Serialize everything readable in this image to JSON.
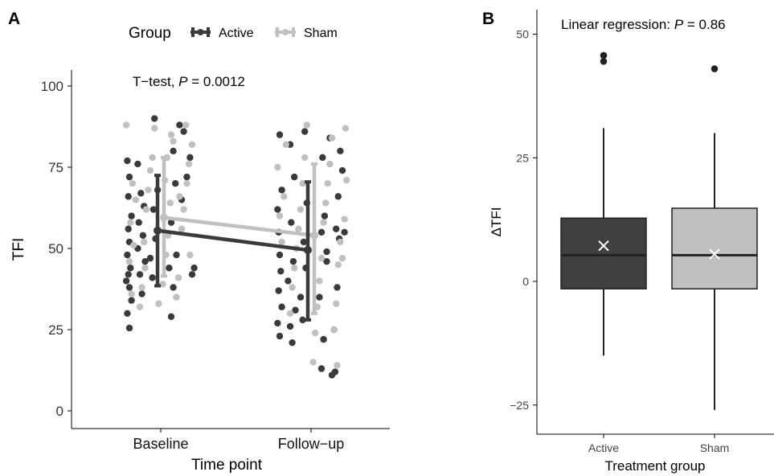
{
  "chart_data": [
    {
      "panel_label": "A",
      "type": "scatter",
      "annotation": {
        "prefix": "T−test, ",
        "p": "P",
        "suffix": " = 0.0012"
      },
      "xlabel": "Time point",
      "ylabel": "TFI",
      "categories": [
        "Baseline",
        "Follow−up"
      ],
      "ylim": [
        -5,
        105
      ],
      "yticks": [
        0,
        25,
        50,
        75,
        100
      ],
      "legend": {
        "title": "Group",
        "position": "top"
      },
      "series": [
        {
          "name": "Active",
          "color": "#3a3a3a",
          "means": [
            55.5,
            49.5
          ],
          "error_low": [
            38.5,
            28
          ],
          "error_high": [
            72.5,
            70.5
          ],
          "points": [
            [
              [
                -0.3,
                25.5
              ],
              [
                -0.32,
                30
              ],
              [
                -0.28,
                34
              ],
              [
                -0.3,
                38
              ],
              [
                -0.33,
                40
              ],
              [
                -0.31,
                42
              ],
              [
                -0.29,
                44
              ],
              [
                -0.32,
                48
              ],
              [
                -0.3,
                52
              ],
              [
                -0.31,
                56
              ],
              [
                -0.28,
                60
              ],
              [
                -0.31,
                66
              ],
              [
                -0.3,
                72
              ],
              [
                -0.32,
                77
              ],
              [
                -0.18,
                36
              ],
              [
                -0.2,
                42
              ],
              [
                -0.15,
                46
              ],
              [
                -0.22,
                50
              ],
              [
                -0.17,
                54
              ],
              [
                -0.21,
                58
              ],
              [
                -0.16,
                63
              ],
              [
                -0.19,
                67
              ],
              [
                -0.22,
                76
              ],
              [
                -0.08,
                41
              ],
              [
                -0.1,
                47
              ],
              [
                -0.05,
                53
              ],
              [
                -0.07,
                62
              ],
              [
                -0.03,
                68
              ],
              [
                -0.06,
                90
              ],
              [
                0.1,
                29
              ],
              [
                0.12,
                38
              ],
              [
                0.08,
                44
              ],
              [
                0.15,
                48
              ],
              [
                0.1,
                58
              ],
              [
                0.14,
                70
              ],
              [
                0.12,
                80
              ],
              [
                0.2,
                65
              ],
              [
                0.25,
                72
              ],
              [
                0.28,
                78
              ],
              [
                0.22,
                86
              ],
              [
                0.3,
                42
              ],
              [
                0.32,
                44
              ],
              [
                0.18,
                88
              ]
            ],
            [
              [
                -0.3,
                23
              ],
              [
                -0.32,
                27
              ],
              [
                -0.28,
                32
              ],
              [
                -0.31,
                37
              ],
              [
                -0.29,
                43
              ],
              [
                -0.3,
                48
              ],
              [
                -0.31,
                55
              ],
              [
                -0.32,
                62
              ],
              [
                -0.28,
                68
              ],
              [
                -0.3,
                85
              ],
              [
                -0.18,
                21
              ],
              [
                -0.2,
                26
              ],
              [
                -0.15,
                31
              ],
              [
                -0.22,
                40
              ],
              [
                -0.17,
                46
              ],
              [
                -0.19,
                58
              ],
              [
                -0.16,
                72
              ],
              [
                -0.2,
                82
              ],
              [
                -0.08,
                28
              ],
              [
                -0.1,
                35
              ],
              [
                -0.05,
                44
              ],
              [
                -0.07,
                52
              ],
              [
                -0.04,
                64
              ],
              [
                -0.06,
                86
              ],
              [
                0.1,
                13
              ],
              [
                0.12,
                22
              ],
              [
                0.08,
                35
              ],
              [
                0.15,
                46
              ],
              [
                0.1,
                55
              ],
              [
                0.13,
                60
              ],
              [
                0.11,
                78
              ],
              [
                0.2,
                11
              ],
              [
                0.22,
                25
              ],
              [
                0.25,
                38
              ],
              [
                0.27,
                53
              ],
              [
                0.24,
                56
              ],
              [
                0.26,
                66
              ],
              [
                0.3,
                74
              ],
              [
                0.28,
                80
              ],
              [
                0.32,
                55
              ],
              [
                0.18,
                84
              ],
              [
                0.23,
                12
              ],
              [
                0.15,
                49
              ]
            ]
          ]
        },
        {
          "name": "Sham",
          "color": "#c0c0c0",
          "means": [
            59.5,
            54
          ],
          "error_low": [
            41.5,
            30
          ],
          "error_high": [
            78,
            76
          ],
          "points": [
            [
              [
                -0.33,
                88
              ],
              [
                -0.28,
                36
              ],
              [
                -0.3,
                46
              ],
              [
                -0.26,
                51
              ],
              [
                -0.29,
                58
              ],
              [
                -0.27,
                70
              ],
              [
                -0.2,
                32
              ],
              [
                -0.18,
                38
              ],
              [
                -0.15,
                44
              ],
              [
                -0.16,
                52
              ],
              [
                -0.14,
                62
              ],
              [
                -0.12,
                68
              ],
              [
                -0.1,
                74
              ],
              [
                -0.08,
                78
              ],
              [
                -0.06,
                87
              ],
              [
                -0.02,
                33
              ],
              [
                0.02,
                39
              ],
              [
                0.05,
                48
              ],
              [
                0.07,
                54
              ],
              [
                0.09,
                64
              ],
              [
                0.04,
                71
              ],
              [
                0.06,
                78
              ],
              [
                0.1,
                85
              ],
              [
                0.15,
                35
              ],
              [
                0.17,
                41
              ],
              [
                0.2,
                56
              ],
              [
                0.22,
                62
              ],
              [
                0.25,
                70
              ],
              [
                0.27,
                76
              ],
              [
                0.3,
                82
              ],
              [
                0.24,
                88
              ],
              [
                0.28,
                48
              ],
              [
                -0.24,
                65
              ],
              [
                0.12,
                83
              ],
              [
                0.18,
                66
              ]
            ],
            [
              [
                -0.3,
                60
              ],
              [
                -0.28,
                52
              ],
              [
                -0.26,
                66
              ],
              [
                -0.32,
                75
              ],
              [
                -0.24,
                82
              ],
              [
                -0.2,
                30
              ],
              [
                -0.18,
                38
              ],
              [
                -0.16,
                44
              ],
              [
                -0.14,
                50
              ],
              [
                -0.12,
                56
              ],
              [
                -0.1,
                62
              ],
              [
                -0.08,
                70
              ],
              [
                -0.06,
                78
              ],
              [
                -0.04,
                88
              ],
              [
                0.02,
                15
              ],
              [
                0.04,
                24
              ],
              [
                0.06,
                32
              ],
              [
                0.08,
                40
              ],
              [
                0.1,
                47
              ],
              [
                0.12,
                58
              ],
              [
                0.14,
                64
              ],
              [
                0.16,
                70
              ],
              [
                0.18,
                76
              ],
              [
                0.2,
                84
              ],
              [
                0.22,
                25
              ],
              [
                0.24,
                33
              ],
              [
                0.26,
                45
              ],
              [
                0.28,
                52
              ],
              [
                0.3,
                47
              ],
              [
                0.32,
                59
              ],
              [
                0.34,
                71
              ],
              [
                0.33,
                87
              ],
              [
                0.25,
                14
              ]
            ]
          ]
        }
      ]
    },
    {
      "panel_label": "B",
      "type": "box",
      "annotation": {
        "prefix": "Linear regression: ",
        "p": "P",
        "suffix": " = 0.86"
      },
      "xlabel": "Treatment group",
      "ylabel": "ΔTFI",
      "categories": [
        "Active",
        "Sham"
      ],
      "ylim": [
        -30,
        52
      ],
      "yticks": [
        -25,
        0,
        25,
        50
      ],
      "boxes": [
        {
          "name": "Active",
          "color": "#404040",
          "whisker_low": -15,
          "q1": -1.5,
          "median": 5.3,
          "q3": 12.8,
          "whisker_high": 31,
          "mean": 7.2,
          "outliers": [
            44.5,
            45.7
          ]
        },
        {
          "name": "Sham",
          "color": "#c0c0c0",
          "whisker_low": -26,
          "q1": -1.5,
          "median": 5.3,
          "q3": 14.8,
          "whisker_high": 30,
          "mean": 5.5,
          "outliers": [
            43
          ]
        }
      ]
    }
  ]
}
